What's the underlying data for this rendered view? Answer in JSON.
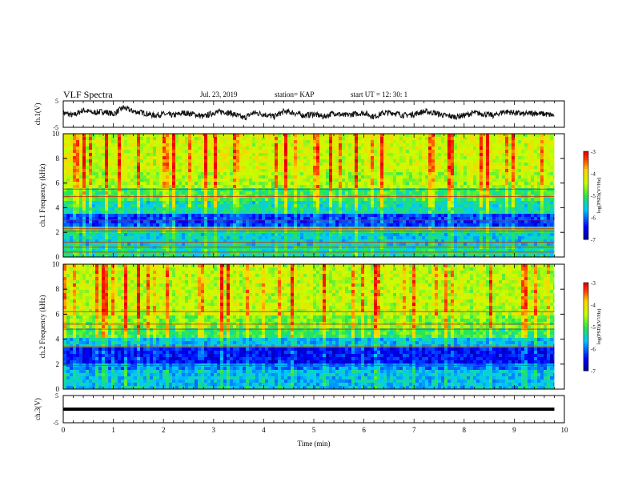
{
  "header": {
    "title": "VLF Spectra",
    "date": "Jul. 23, 2019",
    "station": "station= KAP",
    "start": "start UT =  12: 30: 1"
  },
  "chart_data": [
    {
      "type": "line",
      "panel": "ch1-voltage",
      "ylabel": "ch.1(V)",
      "ylim": [
        -5,
        5
      ],
      "yticks": [
        5,
        -5
      ],
      "xlim": [
        0,
        10
      ],
      "series": [
        {
          "description": "noisy voltage trace around 0 V",
          "x": [
            0,
            0.2,
            0.4,
            0.6,
            0.8,
            1.0,
            1.2,
            1.4,
            1.6,
            1.8,
            2.0,
            2.2,
            2.4,
            2.6,
            2.8,
            3.0,
            3.2,
            3.4,
            3.6,
            3.8,
            4.0,
            4.2,
            4.4,
            4.6,
            4.8,
            5.0,
            5.2,
            5.4,
            5.6,
            5.8,
            6.0,
            6.2,
            6.4,
            6.6,
            6.8,
            7.0,
            7.2,
            7.4,
            7.6,
            7.8,
            8.0,
            8.2,
            8.4,
            8.6,
            8.8,
            9.0,
            9.2,
            9.4,
            9.6,
            9.8
          ],
          "values": [
            0.5,
            -0.5,
            1.5,
            0.5,
            1,
            0,
            2.5,
            1,
            0.5,
            -0.5,
            0,
            -0.5,
            0.5,
            0,
            -1,
            0.5,
            1,
            0,
            -1.5,
            0.5,
            0,
            -1,
            1,
            0.5,
            -0.5,
            0,
            -1,
            0.5,
            -0.5,
            0,
            0.5,
            -1,
            0.5,
            0.5,
            -0.5,
            0,
            1,
            0.5,
            -0.5,
            -1,
            -0.5,
            0.5,
            0,
            -0.5,
            1,
            0.5,
            0,
            0.5,
            0,
            -0.5
          ]
        }
      ]
    },
    {
      "type": "heatmap",
      "panel": "ch1-spectrogram",
      "ylabel": "ch.1 Frequency (kHz)",
      "ylim": [
        0,
        10
      ],
      "yticks": [
        0,
        2,
        4,
        6,
        8,
        10
      ],
      "xlim": [
        0,
        10
      ],
      "colorbar": {
        "label": "log(PSD)(V²/Hz)",
        "range": [
          -7,
          -3
        ],
        "ticks": [
          -3,
          -4,
          -5,
          -6,
          -7
        ]
      },
      "bands": [
        {
          "fmin": 0,
          "fmax": 1,
          "log_psd": -5.3
        },
        {
          "fmin": 1,
          "fmax": 2,
          "log_psd": -5.5
        },
        {
          "fmin": 2,
          "fmax": 2.5,
          "log_psd": -5.2
        },
        {
          "fmin": 2.5,
          "fmax": 3.5,
          "log_psd": -6.2
        },
        {
          "fmin": 3.5,
          "fmax": 4.5,
          "log_psd": -5.3
        },
        {
          "fmin": 4.5,
          "fmax": 5.5,
          "log_psd": -5.0
        },
        {
          "fmin": 5.5,
          "fmax": 7,
          "log_psd": -4.5
        },
        {
          "fmin": 7,
          "fmax": 10,
          "log_psd": -4.3
        }
      ],
      "lines_khz": [
        0.4,
        0.8,
        1.2,
        2.1,
        2.3,
        3.0,
        4.9,
        5.5
      ]
    },
    {
      "type": "heatmap",
      "panel": "ch2-spectrogram",
      "ylabel": "ch.2 Frequency (kHz)",
      "ylim": [
        0,
        10
      ],
      "yticks": [
        0,
        2,
        4,
        6,
        8,
        10
      ],
      "xlim": [
        0,
        10
      ],
      "colorbar": {
        "label": "log(PSD)(V²/Hz)",
        "range": [
          -7,
          -3
        ],
        "ticks": [
          -3,
          -4,
          -5,
          -6,
          -7
        ]
      },
      "bands": [
        {
          "fmin": 0,
          "fmax": 1.5,
          "log_psd": -5.6
        },
        {
          "fmin": 1.5,
          "fmax": 2,
          "log_psd": -5.9
        },
        {
          "fmin": 2,
          "fmax": 3.3,
          "log_psd": -6.4
        },
        {
          "fmin": 3.3,
          "fmax": 4,
          "log_psd": -5.6
        },
        {
          "fmin": 4,
          "fmax": 4.8,
          "log_psd": -5.0
        },
        {
          "fmin": 4.8,
          "fmax": 6,
          "log_psd": -4.7
        },
        {
          "fmin": 6,
          "fmax": 10,
          "log_psd": -4.4
        }
      ],
      "lines_khz": [
        1.9,
        3.4,
        4.8,
        5.2,
        6.2
      ]
    },
    {
      "type": "line",
      "panel": "ch3-voltage",
      "ylabel": "ch.3(V)",
      "ylim": [
        -5,
        5
      ],
      "yticks": [
        5,
        -5
      ],
      "xlabel": "Time (min)",
      "xlim": [
        0,
        10
      ],
      "xticks": [
        0,
        1,
        2,
        3,
        4,
        5,
        6,
        7,
        8,
        9,
        10
      ],
      "series": [
        {
          "description": "flat trace",
          "x": [
            0,
            9.8
          ],
          "values": [
            0,
            0
          ]
        }
      ]
    }
  ]
}
